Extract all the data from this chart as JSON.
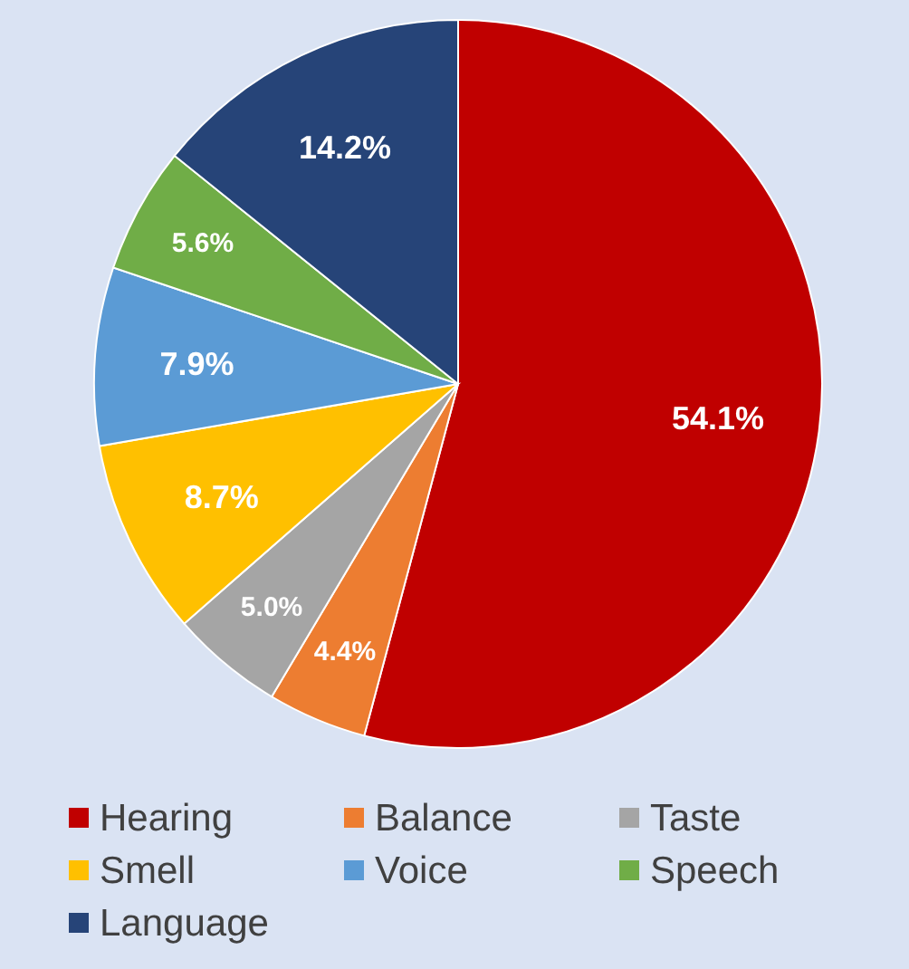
{
  "chart_data": {
    "type": "pie",
    "categories": [
      "Hearing",
      "Balance",
      "Taste",
      "Smell",
      "Voice",
      "Speech",
      "Language"
    ],
    "values": [
      54.1,
      4.4,
      5.0,
      8.7,
      7.9,
      5.6,
      14.2
    ],
    "colors": [
      "#c00000",
      "#ed7d31",
      "#a5a5a5",
      "#ffc000",
      "#5b9bd5",
      "#70ad47",
      "#264478"
    ],
    "value_labels": [
      "54.1%",
      "4.4%",
      "5.0%",
      "8.7%",
      "7.9%",
      "5.6%",
      "14.2%"
    ],
    "legend": "bottom"
  }
}
